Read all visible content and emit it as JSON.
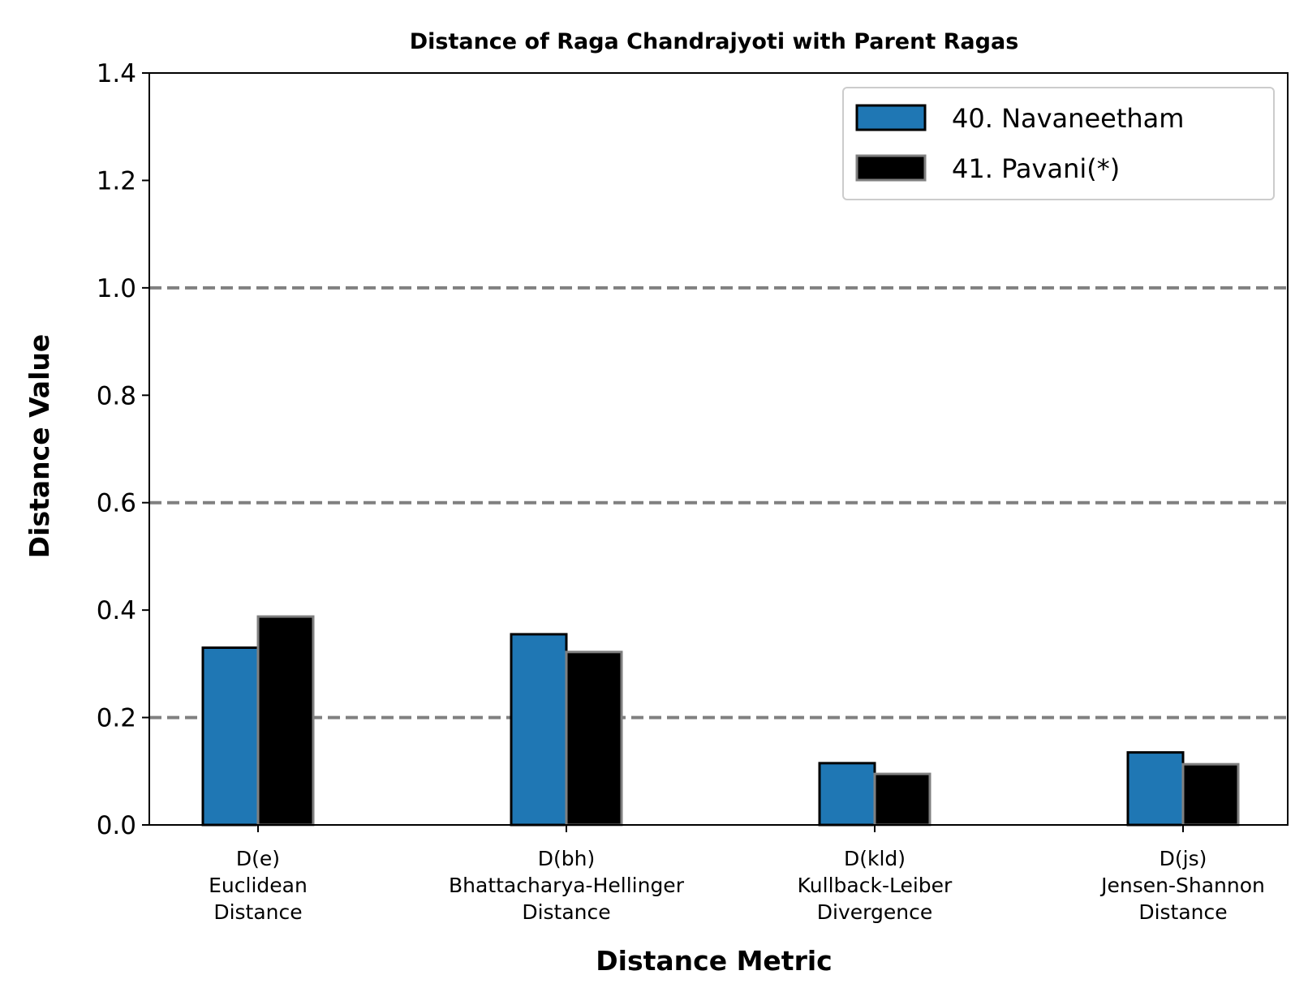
{
  "chart_data": {
    "type": "bar",
    "title": "Distance of Raga Chandrajyoti with Parent Ragas",
    "xlabel": "Distance Metric",
    "ylabel": "Distance Value",
    "ylim": [
      0,
      1.4
    ],
    "yticks": [
      "0.0",
      "0.2",
      "0.4",
      "0.6",
      "0.8",
      "1.0",
      "1.2",
      "1.4"
    ],
    "reference_lines": [
      0.2,
      0.6,
      1.0
    ],
    "legend_position": "top-right",
    "categories": [
      [
        "D(e)",
        "Euclidean",
        "Distance"
      ],
      [
        "D(bh)",
        "Bhattacharya-Hellinger",
        "Distance"
      ],
      [
        "D(kld)",
        "Kullback-Leiber",
        "Divergence"
      ],
      [
        "D(js)",
        "Jensen-Shannon",
        "Distance"
      ]
    ],
    "series": [
      {
        "name": "40. Navaneetham",
        "color": "#1f77b4",
        "edge": "#000000",
        "values": [
          0.33,
          0.355,
          0.115,
          0.135
        ]
      },
      {
        "name": "41. Pavani(*)",
        "color": "#000000",
        "edge": "#808080",
        "values": [
          0.388,
          0.322,
          0.095,
          0.113
        ]
      }
    ]
  }
}
